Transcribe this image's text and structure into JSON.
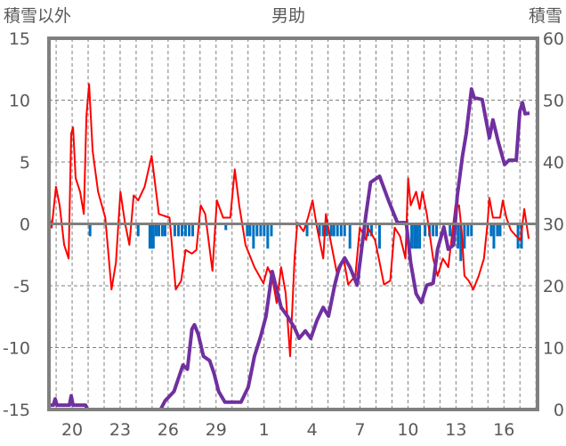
{
  "chart_data": {
    "type": "line",
    "title": "男助",
    "ylabel_left": "積雪以外",
    "ylabel_right": "積雪",
    "ylim_left": [
      -15,
      15
    ],
    "ylim_right": [
      0,
      60
    ],
    "yticks_left": [
      "15",
      "10",
      "5",
      "0",
      "-5",
      "-10",
      "-15"
    ],
    "yticks_right": [
      "60",
      "50",
      "40",
      "30",
      "20",
      "10",
      "0"
    ],
    "x_unit": "days since day 20",
    "xlim": [
      -1.45,
      29.1
    ],
    "xticks": [
      {
        "x": 0,
        "label": "20"
      },
      {
        "x": 3,
        "label": "23"
      },
      {
        "x": 6,
        "label": "26"
      },
      {
        "x": 9,
        "label": "29"
      },
      {
        "x": 12,
        "label": "1"
      },
      {
        "x": 15,
        "label": "4"
      },
      {
        "x": 18,
        "label": "7"
      },
      {
        "x": 21,
        "label": "10"
      },
      {
        "x": 24,
        "label": "13"
      },
      {
        "x": 27,
        "label": "16"
      }
    ],
    "grid": true,
    "series": [
      {
        "name": "積雪以外 (red line)",
        "axis": "left",
        "color": "#FF0000",
        "points": [
          [
            -1.45,
            0.8
          ],
          [
            -1.28,
            -0.3
          ],
          [
            -1.01,
            3
          ],
          [
            -0.78,
            1.5
          ],
          [
            -0.5,
            -1.7
          ],
          [
            -0.22,
            -2.8
          ],
          [
            -0.06,
            7.3
          ],
          [
            0.06,
            7.8
          ],
          [
            0.22,
            3.7
          ],
          [
            0.5,
            2.6
          ],
          [
            0.73,
            0.8
          ],
          [
            0.89,
            8.7
          ],
          [
            1.06,
            11.3
          ],
          [
            1.28,
            5.9
          ],
          [
            1.62,
            2.6
          ],
          [
            2.07,
            0.5
          ],
          [
            2.46,
            -5.3
          ],
          [
            2.74,
            -3.1
          ],
          [
            3.02,
            2.6
          ],
          [
            3.3,
            0.1
          ],
          [
            3.58,
            -1.7
          ],
          [
            3.85,
            2.3
          ],
          [
            4.13,
            1.9
          ],
          [
            4.53,
            3
          ],
          [
            4.97,
            5.5
          ],
          [
            5.42,
            0.8
          ],
          [
            6.09,
            0.5
          ],
          [
            6.48,
            -5.3
          ],
          [
            6.82,
            -4.6
          ],
          [
            7.09,
            -2.1
          ],
          [
            7.49,
            -2.4
          ],
          [
            7.77,
            -2.1
          ],
          [
            8.04,
            1.5
          ],
          [
            8.32,
            0.8
          ],
          [
            8.77,
            -3.8
          ],
          [
            9.05,
            1.9
          ],
          [
            9.44,
            0.5
          ],
          [
            9.89,
            0.5
          ],
          [
            10.17,
            4.4
          ],
          [
            10.45,
            1.5
          ],
          [
            10.84,
            -1.7
          ],
          [
            11.4,
            -3.5
          ],
          [
            11.96,
            -4.8
          ],
          [
            12.23,
            -3.5
          ],
          [
            12.51,
            -4.3
          ],
          [
            12.79,
            -6.4
          ],
          [
            13.07,
            -3.5
          ],
          [
            13.35,
            -5.6
          ],
          [
            13.63,
            -10.7
          ],
          [
            13.91,
            -2.8
          ],
          [
            14.08,
            0.1
          ],
          [
            14.47,
            -0.6
          ],
          [
            14.75,
            0.5
          ],
          [
            15.03,
            1.9
          ],
          [
            15.31,
            -0.3
          ],
          [
            15.7,
            -2.8
          ],
          [
            15.87,
            0.8
          ],
          [
            16.15,
            -1.3
          ],
          [
            16.59,
            -4.2
          ],
          [
            16.98,
            -2.8
          ],
          [
            17.26,
            -4.9
          ],
          [
            17.71,
            -4.2
          ],
          [
            17.99,
            -0.3
          ],
          [
            18.38,
            -1.3
          ],
          [
            18.49,
            -0.3
          ],
          [
            18.94,
            -1.3
          ],
          [
            19.22,
            -3.1
          ],
          [
            19.5,
            -4.9
          ],
          [
            19.89,
            -4.6
          ],
          [
            20.17,
            -0.3
          ],
          [
            20.5,
            -1.0
          ],
          [
            20.84,
            -2.8
          ],
          [
            21.01,
            3.7
          ],
          [
            21.17,
            1.5
          ],
          [
            21.51,
            2.6
          ],
          [
            21.73,
            1.2
          ],
          [
            21.9,
            2.6
          ],
          [
            22.18,
            0.8
          ],
          [
            22.57,
            -2.8
          ],
          [
            22.85,
            -4.2
          ],
          [
            23.18,
            -2.8
          ],
          [
            23.52,
            -3.5
          ],
          [
            23.97,
            1.5
          ],
          [
            24.19,
            1.5
          ],
          [
            24.36,
            -0.6
          ],
          [
            24.53,
            -4.2
          ],
          [
            24.8,
            -4.6
          ],
          [
            25.08,
            -5.3
          ],
          [
            25.42,
            -4.2
          ],
          [
            25.75,
            -2.8
          ],
          [
            25.98,
            0.1
          ],
          [
            26.09,
            2.1
          ],
          [
            26.31,
            0.5
          ],
          [
            26.76,
            0.5
          ],
          [
            26.93,
            1.9
          ],
          [
            27.15,
            0.5
          ],
          [
            27.43,
            -0.5
          ],
          [
            27.77,
            -1.0
          ],
          [
            28.04,
            -1.3
          ],
          [
            28.27,
            1.2
          ],
          [
            28.55,
            -1.2
          ]
        ]
      },
      {
        "name": "積雪 (purple line)",
        "axis": "right",
        "color": "#7030A0",
        "points": [
          [
            -1.45,
            0.7
          ],
          [
            -1.17,
            0.7
          ],
          [
            -1.06,
            1.7
          ],
          [
            -0.95,
            0.7
          ],
          [
            -0.17,
            0.7
          ],
          [
            -0.06,
            2.2
          ],
          [
            0.06,
            0.7
          ],
          [
            0.84,
            0.7
          ],
          [
            0.95,
            0
          ],
          [
            5.53,
            0
          ],
          [
            5.81,
            1.4
          ],
          [
            6.37,
            2.9
          ],
          [
            6.93,
            7.2
          ],
          [
            7.21,
            6.5
          ],
          [
            7.49,
            13
          ],
          [
            7.65,
            13.7
          ],
          [
            7.88,
            12.2
          ],
          [
            8.21,
            8.6
          ],
          [
            8.6,
            7.9
          ],
          [
            8.88,
            5.8
          ],
          [
            9.16,
            2.9
          ],
          [
            9.55,
            1.2
          ],
          [
            10.56,
            1.2
          ],
          [
            11.01,
            3.6
          ],
          [
            11.4,
            8.6
          ],
          [
            11.79,
            11.8
          ],
          [
            12.12,
            15.1
          ],
          [
            12.51,
            22.3
          ],
          [
            12.79,
            19.4
          ],
          [
            13.07,
            16.5
          ],
          [
            13.46,
            15.1
          ],
          [
            13.91,
            13.2
          ],
          [
            14.19,
            11.5
          ],
          [
            14.58,
            12.7
          ],
          [
            14.92,
            11.5
          ],
          [
            15.31,
            14.4
          ],
          [
            15.7,
            16.5
          ],
          [
            16.03,
            15.1
          ],
          [
            16.42,
            20.1
          ],
          [
            16.7,
            23
          ],
          [
            17.04,
            24.5
          ],
          [
            17.37,
            23
          ],
          [
            17.82,
            20.1
          ],
          [
            18.1,
            25.9
          ],
          [
            18.38,
            31.7
          ],
          [
            18.66,
            36.7
          ],
          [
            19.22,
            37.7
          ],
          [
            19.78,
            33.8
          ],
          [
            20.34,
            30.2
          ],
          [
            20.89,
            30.2
          ],
          [
            21.17,
            23.7
          ],
          [
            21.51,
            18.7
          ],
          [
            21.84,
            17.3
          ],
          [
            22.18,
            20.1
          ],
          [
            22.57,
            20.4
          ],
          [
            22.85,
            25.9
          ],
          [
            23.24,
            29.5
          ],
          [
            23.52,
            25.9
          ],
          [
            23.85,
            26.6
          ],
          [
            24.08,
            34.5
          ],
          [
            24.41,
            41
          ],
          [
            24.64,
            44.6
          ],
          [
            24.97,
            51.8
          ],
          [
            25.14,
            50.4
          ],
          [
            25.64,
            50.1
          ],
          [
            26.09,
            43.9
          ],
          [
            26.31,
            46.8
          ],
          [
            26.65,
            43.2
          ],
          [
            27.04,
            39.6
          ],
          [
            27.32,
            40.3
          ],
          [
            27.77,
            40.3
          ],
          [
            27.99,
            48.2
          ],
          [
            28.16,
            49.6
          ],
          [
            28.32,
            47.8
          ],
          [
            28.6,
            47.9
          ]
        ]
      },
      {
        "name": "bars (blue)",
        "axis": "left",
        "type": "bar",
        "color": "#0070C0",
        "points": [
          [
            1.12,
            -1
          ],
          [
            4.13,
            -1
          ],
          [
            4.86,
            -2
          ],
          [
            4.97,
            -2
          ],
          [
            5.08,
            -2
          ],
          [
            5.25,
            -1
          ],
          [
            5.42,
            -1
          ],
          [
            5.64,
            -1
          ],
          [
            5.81,
            -1
          ],
          [
            6.42,
            -1
          ],
          [
            6.65,
            -1
          ],
          [
            6.87,
            -1
          ],
          [
            7.09,
            -1
          ],
          [
            7.32,
            -1
          ],
          [
            7.54,
            -1
          ],
          [
            9.61,
            -0.5
          ],
          [
            10.95,
            -1
          ],
          [
            11.12,
            -1
          ],
          [
            11.34,
            -2
          ],
          [
            11.56,
            -1
          ],
          [
            11.79,
            -1
          ],
          [
            12.01,
            -1
          ],
          [
            12.23,
            -2
          ],
          [
            12.46,
            -1
          ],
          [
            14.69,
            -1
          ],
          [
            15.47,
            -1
          ],
          [
            15.7,
            -1
          ],
          [
            15.92,
            -1
          ],
          [
            16.2,
            -1
          ],
          [
            16.37,
            -1
          ],
          [
            16.59,
            -1
          ],
          [
            16.82,
            -1
          ],
          [
            17.04,
            -1
          ],
          [
            17.37,
            -2
          ],
          [
            18.27,
            -1
          ],
          [
            18.49,
            -1
          ],
          [
            18.72,
            -1
          ],
          [
            19.22,
            -2
          ],
          [
            21.23,
            -2
          ],
          [
            21.4,
            -2
          ],
          [
            21.56,
            -2
          ],
          [
            21.73,
            -2
          ],
          [
            22.07,
            -1
          ],
          [
            22.35,
            -1
          ],
          [
            22.57,
            -1
          ],
          [
            22.79,
            -1
          ],
          [
            23.63,
            -1
          ],
          [
            24.13,
            -2
          ],
          [
            24.3,
            -3
          ],
          [
            24.53,
            -2
          ],
          [
            24.75,
            -1
          ],
          [
            24.97,
            -1
          ],
          [
            26.2,
            -1
          ],
          [
            26.37,
            -2
          ],
          [
            26.59,
            -1
          ],
          [
            26.76,
            -1
          ],
          [
            27.88,
            -2
          ],
          [
            28.1,
            -2
          ]
        ]
      }
    ]
  }
}
